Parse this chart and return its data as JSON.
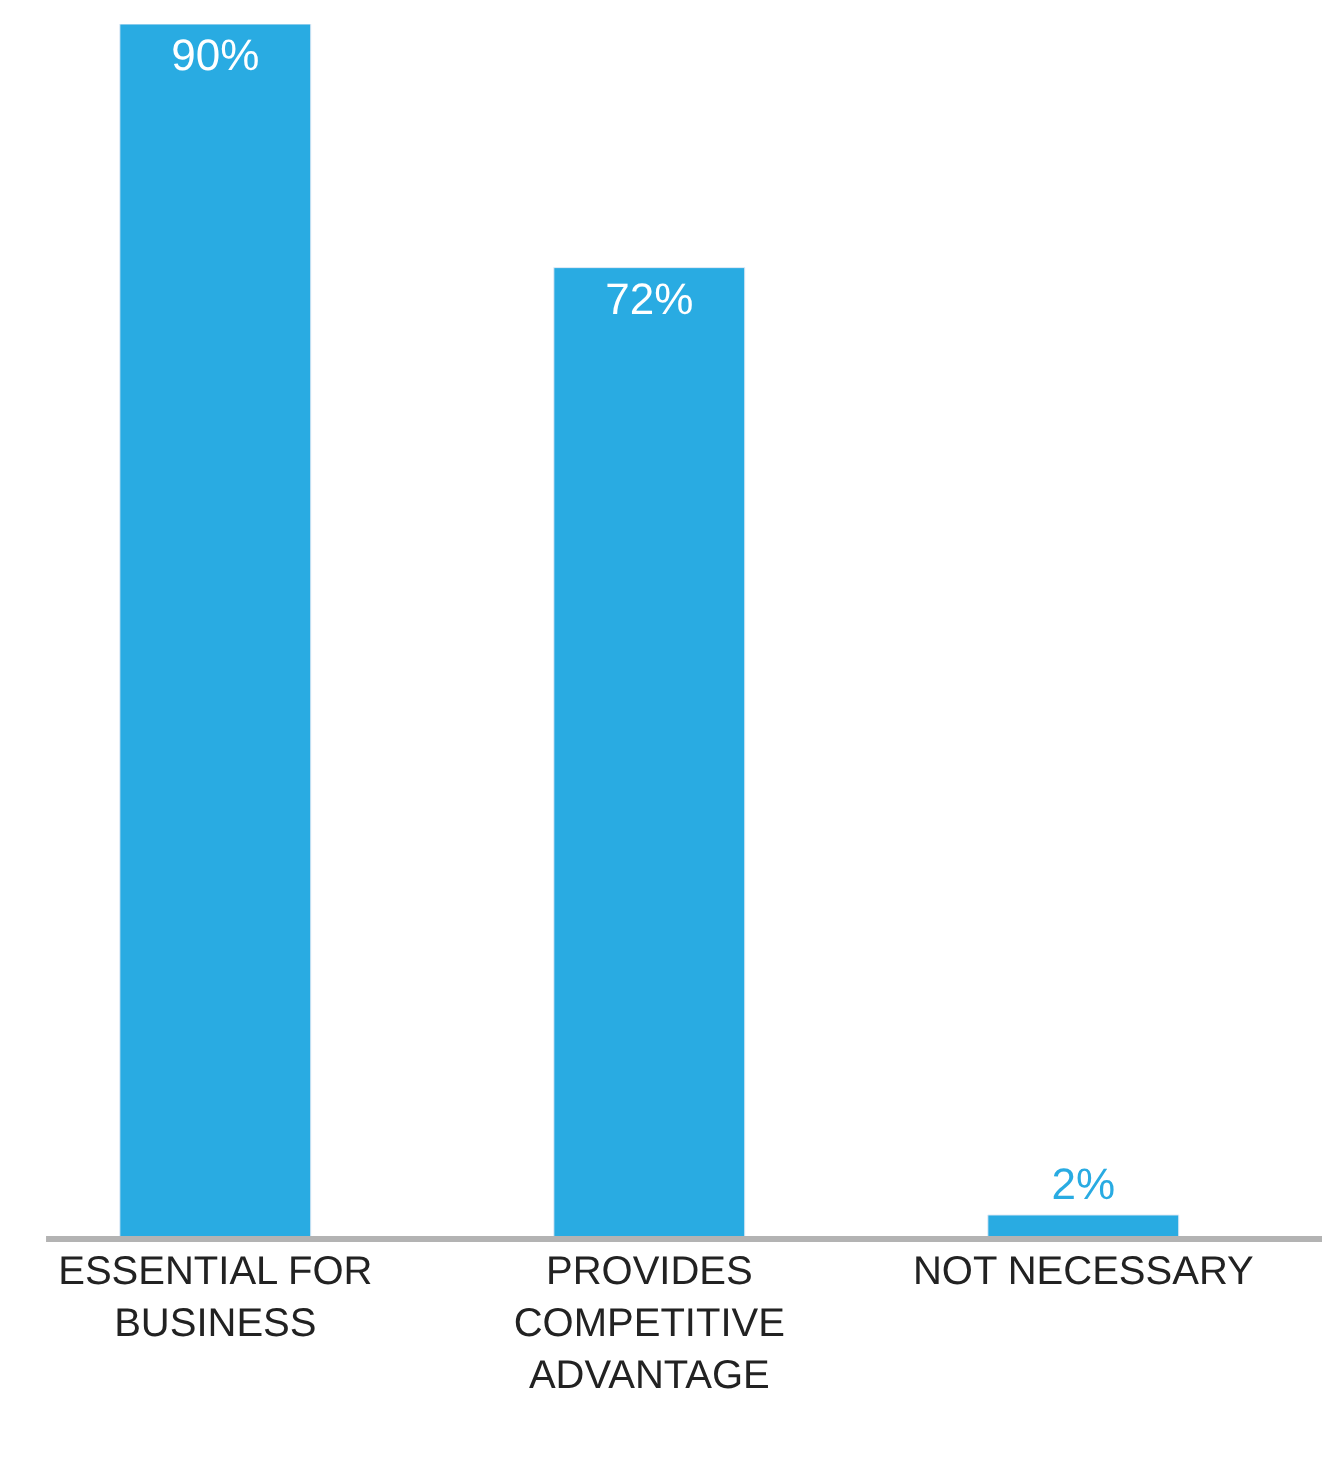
{
  "chart_data": {
    "type": "bar",
    "categories": [
      "ESSENTIAL FOR BUSINESS",
      "PROVIDES COMPETITIVE ADVANTAGE",
      "NOT NECESSARY"
    ],
    "values": [
      90,
      72,
      2
    ],
    "value_labels": [
      "90%",
      "72%",
      "2%"
    ],
    "color": "#29abe2"
  }
}
